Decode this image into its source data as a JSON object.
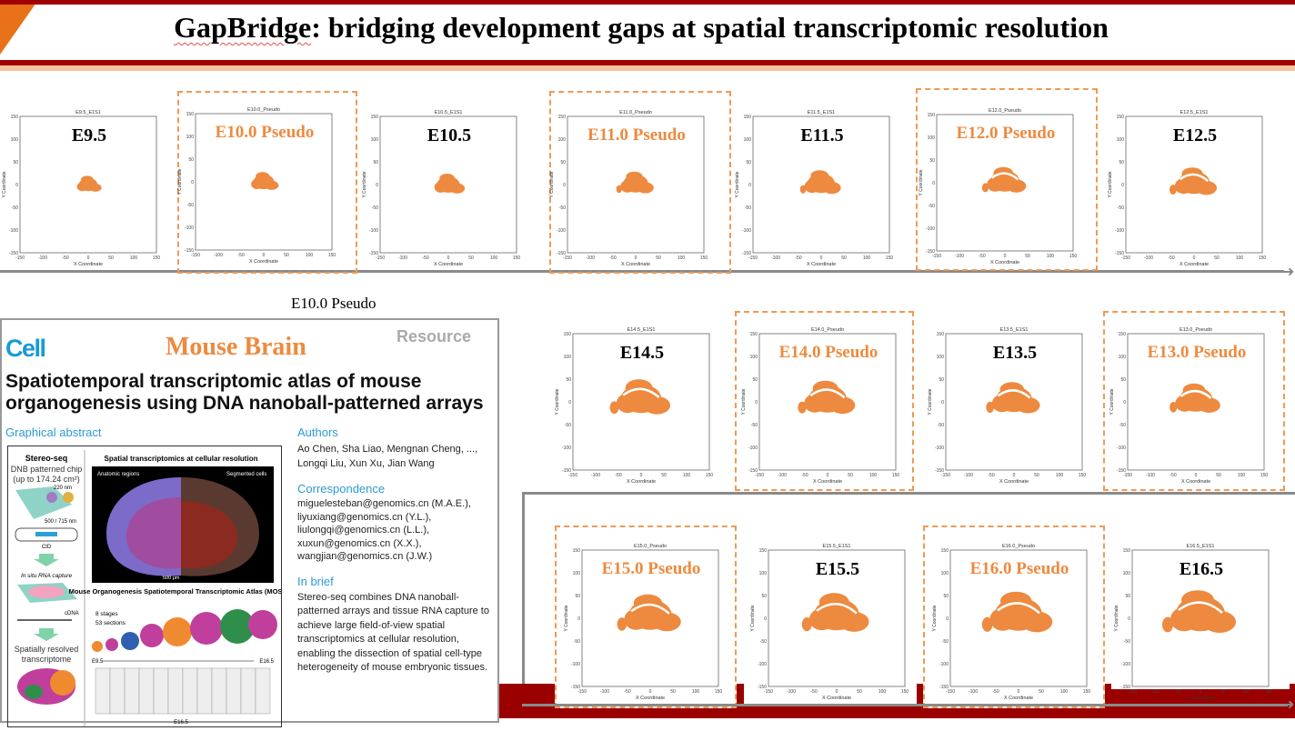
{
  "header": {
    "title_prefix": "GapBridge",
    "title_rest": ": bridging development gaps at spatial transcriptomic resolution"
  },
  "axis": {
    "ticks": [
      "-150",
      "-100",
      "-50",
      "0",
      "50",
      "100",
      "150"
    ],
    "xlabel": "X Coordinate",
    "ylabel": "Y Coordinate"
  },
  "plots": [
    {
      "title": "E9.5_E1S1",
      "label": "E9.5",
      "pseudo": false,
      "stage": 9.5
    },
    {
      "title": "E10.0_Pseudo",
      "label": "E10.0 Pseudo",
      "pseudo": true,
      "stage": 10.0
    },
    {
      "title": "E10.5_E1S1",
      "label": "E10.5",
      "pseudo": false,
      "stage": 10.5
    },
    {
      "title": "E11.0_Pseudo",
      "label": "E11.0 Pseudo",
      "pseudo": true,
      "stage": 11.0
    },
    {
      "title": "E11.5_E1S1",
      "label": "E11.5",
      "pseudo": false,
      "stage": 11.5
    },
    {
      "title": "E12.0_Pseudo",
      "label": "E12.0 Pseudo",
      "pseudo": true,
      "stage": 12.0
    },
    {
      "title": "E12.5_E1S1",
      "label": "E12.5",
      "pseudo": false,
      "stage": 12.5
    },
    {
      "title": "E14.5_E1S1",
      "label": "E14.5",
      "pseudo": false,
      "stage": 14.5
    },
    {
      "title": "E14.0_Pseudo",
      "label": "E14.0 Pseudo",
      "pseudo": true,
      "stage": 14.0
    },
    {
      "title": "E13.5_E1S1",
      "label": "E13.5",
      "pseudo": false,
      "stage": 13.5
    },
    {
      "title": "E13.0_Pseudo",
      "label": "E13.0 Pseudo",
      "pseudo": true,
      "stage": 13.0
    },
    {
      "title": "E15.0_Pseudo",
      "label": "E15.0 Pseudo",
      "pseudo": true,
      "stage": 15.0
    },
    {
      "title": "E15.5_E1S1",
      "label": "E15.5",
      "pseudo": false,
      "stage": 15.5
    },
    {
      "title": "E16.0_Pseudo",
      "label": "E16.0 Pseudo",
      "pseudo": true,
      "stage": 16.0
    },
    {
      "title": "E16.5_E1S1",
      "label": "E16.5",
      "pseudo": false,
      "stage": 16.5
    }
  ],
  "mid_label": "E10.0 Pseudo",
  "paper": {
    "journal": "Cell",
    "overlay": "Mouse Brain",
    "type": "Resource",
    "title": "Spatiotemporal transcriptomic atlas of mouse organogenesis using DNA nanoball-patterned arrays",
    "graphical_abstract": "Graphical abstract",
    "ga": {
      "left_title": "Stereo-seq",
      "chip": "DNB patterned chip (up to 174.24 cm²)",
      "nm1": "220 nm",
      "nm2": "500 / 715 nm",
      "cid": "CID",
      "capture": "In situ RNA capture",
      "cdna": "cDNA",
      "resolved": "Spatially resolved transcriptome",
      "right_title": "Spatial transcriptomics at cellular resolution",
      "anatomic": "Anatomic regions",
      "segmented": "Segmented cells",
      "scale": "500 μm",
      "mosta": "Mouse Organogenesis Spatiotemporal Transcriptomic Atlas (MOSTA)",
      "stages": "8 stages",
      "sections": "53 sections",
      "e95": "E9.5",
      "e165": "E16.5",
      "e165b": "E16.5"
    },
    "authors_h": "Authors",
    "authors": "Ao Chen, Sha Liao, Mengnan Cheng, ..., Longqi Liu, Xun Xu, Jian Wang",
    "corr_h": "Correspondence",
    "emails": [
      "miguelesteban@genomics.cn (M.A.E.),",
      "liyuxiang@genomics.cn (Y.L.),",
      "liulongqi@genomics.cn (L.L.),",
      "xuxun@genomics.cn (X.X.),",
      "wangjian@genomics.cn (J.W.)"
    ],
    "brief_h": "In brief",
    "brief": "Stereo-seq combines DNA nanoball-patterned arrays and tissue RNA capture to achieve large field-of-view spatial transcriptomics at cellular resolution, enabling the dissection of spatial cell-type heterogeneity of mouse embryonic tissues."
  },
  "colors": {
    "accent": "#ed8a3f",
    "dark_red": "#a00000",
    "cell_blue": "#1a9ad6"
  }
}
